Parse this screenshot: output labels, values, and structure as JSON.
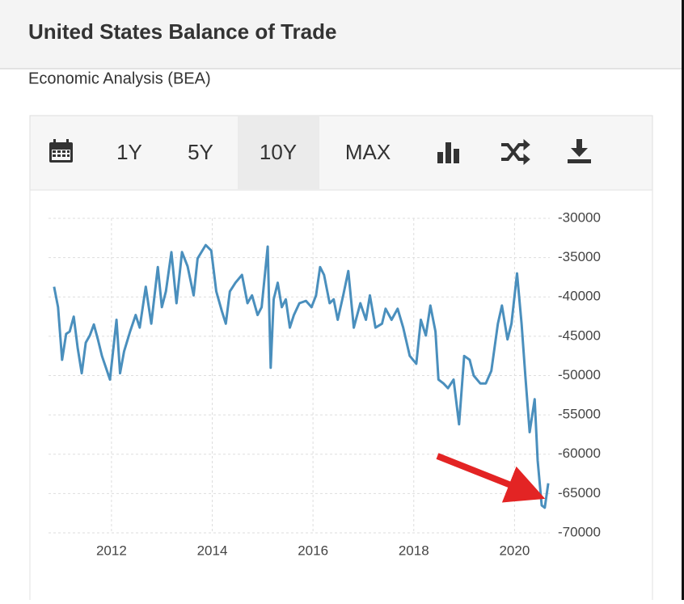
{
  "header": {
    "title": "United States Balance of Trade",
    "subtitle": "Economic Analysis (BEA)"
  },
  "toolbar": {
    "buttons": [
      "1Y",
      "5Y",
      "10Y",
      "MAX"
    ],
    "selected": "10Y"
  },
  "chart_data": {
    "type": "line",
    "color": "#4a8fbd",
    "grid": true,
    "x": [
      2010.86,
      2010.94,
      2011.02,
      2011.1,
      2011.17,
      2011.25,
      2011.33,
      2011.41,
      2011.49,
      2011.57,
      2011.65,
      2011.73,
      2011.81,
      2011.97,
      2012.1,
      2012.17,
      2012.25,
      2012.37,
      2012.48,
      2012.56,
      2012.68,
      2012.79,
      2012.92,
      2013.0,
      2013.08,
      2013.19,
      2013.29,
      2013.4,
      2013.51,
      2013.63,
      2013.71,
      2013.87,
      2013.98,
      2014.08,
      2014.19,
      2014.27,
      2014.35,
      2014.46,
      2014.59,
      2014.7,
      2014.79,
      2014.9,
      2014.98,
      2015.1,
      2015.16,
      2015.22,
      2015.3,
      2015.38,
      2015.46,
      2015.54,
      2015.62,
      2015.73,
      2015.86,
      2015.97,
      2016.06,
      2016.14,
      2016.22,
      2016.33,
      2016.41,
      2016.49,
      2016.6,
      2016.7,
      2016.81,
      2016.94,
      2017.05,
      2017.13,
      2017.24,
      2017.37,
      2017.44,
      2017.56,
      2017.68,
      2017.79,
      2017.92,
      2018.05,
      2018.14,
      2018.24,
      2018.33,
      2018.43,
      2018.49,
      2018.59,
      2018.68,
      2018.79,
      2018.9,
      2019.0,
      2019.11,
      2019.19,
      2019.32,
      2019.43,
      2019.54,
      2019.67,
      2019.75,
      2019.86,
      2019.94,
      2020.05,
      2020.14,
      2020.22,
      2020.3,
      2020.4,
      2020.46,
      2020.54,
      2020.6,
      2020.67
    ],
    "values": [
      -38700,
      -41300,
      -48000,
      -44700,
      -44400,
      -42500,
      -46500,
      -49700,
      -45800,
      -44900,
      -43500,
      -45400,
      -47500,
      -50500,
      -42900,
      -49700,
      -46900,
      -44400,
      -42300,
      -43900,
      -38700,
      -43400,
      -36200,
      -41300,
      -39300,
      -34300,
      -40800,
      -34300,
      -36100,
      -39800,
      -35100,
      -33400,
      -34100,
      -39300,
      -41800,
      -43400,
      -39300,
      -38200,
      -37200,
      -40800,
      -39800,
      -42300,
      -41300,
      -33600,
      -49000,
      -40300,
      -38200,
      -41300,
      -40300,
      -43900,
      -42300,
      -40800,
      -40500,
      -41300,
      -39800,
      -36200,
      -37200,
      -40800,
      -40300,
      -42900,
      -39800,
      -36700,
      -43900,
      -40800,
      -42900,
      -39800,
      -43900,
      -43400,
      -41500,
      -42900,
      -41500,
      -43900,
      -47500,
      -48500,
      -42900,
      -44900,
      -41100,
      -44400,
      -50500,
      -51000,
      -51600,
      -50500,
      -56200,
      -47500,
      -48000,
      -50000,
      -51000,
      -51000,
      -49400,
      -43400,
      -41100,
      -45400,
      -43400,
      -37000,
      -43400,
      -50500,
      -57200,
      -53000,
      -60800,
      -66500,
      -66800,
      -63700
    ],
    "xlim": [
      2010.75,
      2020.7
    ],
    "xticks": [
      2012,
      2014,
      2016,
      2018,
      2020
    ],
    "ylim": [
      -70000,
      -30000
    ],
    "yticks": [
      -30000,
      -35000,
      -40000,
      -45000,
      -50000,
      -55000,
      -60000,
      -65000,
      -70000
    ]
  }
}
